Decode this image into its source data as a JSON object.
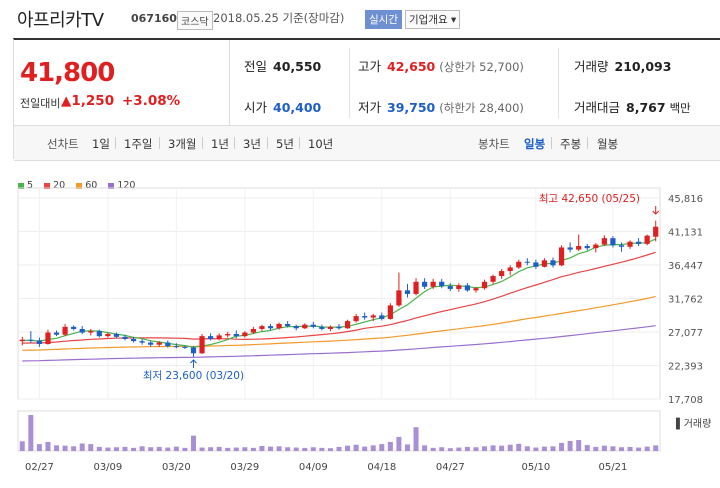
{
  "stock": {
    "name": "아프리카TV",
    "code": "067160",
    "market": "코스닥",
    "asof": "2018.05.25 기준(장마감)",
    "realtime_label": "실시간",
    "company_info_label": "기업개요 ▾"
  },
  "price": {
    "current": "41,800",
    "change_label": "전일대비",
    "change": "▲1,250",
    "change_pct": "+3.08%"
  },
  "stats": {
    "prev_close_label": "전일",
    "prev_close": "40,550",
    "high_label": "고가",
    "high": "42,650",
    "high_limit": "(상한가 52,700)",
    "volume_label": "거래량",
    "volume": "210,093",
    "open_label": "시가",
    "open": "40,400",
    "low_label": "저가",
    "low": "39,750",
    "low_limit": "(하한가 28,400)",
    "amount_label": "거래대금",
    "amount": "8,767",
    "amount_unit": "백만"
  },
  "periods": {
    "line_chart_label": "선차트",
    "line_options": [
      "1일",
      "1주일",
      "3개월",
      "1년",
      "3년",
      "5년",
      "10년"
    ],
    "candle_chart_label": "봉차트",
    "candle_options": [
      "일봉",
      "주봉",
      "월봉"
    ],
    "active": "일봉"
  },
  "colors": {
    "up": "#e02020",
    "down": "#1d5ec7",
    "ma5": "#49b449",
    "ma20": "#e84545",
    "ma60": "#f39a2b",
    "ma120": "#9a6fce",
    "volume": "#a98fd6"
  },
  "chart_data": {
    "type": "candlestick",
    "legend": [
      "5",
      "20",
      "60",
      "120"
    ],
    "y_ticks": [
      "45,816",
      "41,131",
      "36,447",
      "31,762",
      "27,077",
      "22,393",
      "17,708"
    ],
    "ylim": [
      17708,
      45816
    ],
    "x_ticks": [
      "02/27",
      "03/09",
      "03/20",
      "03/29",
      "04/09",
      "04/18",
      "04/27",
      "05/10",
      "05/21"
    ],
    "annotation_high": "최고 42,650 (05/25)",
    "annotation_low": "최저 23,600 (03/20)",
    "volume_label": "거래량",
    "candles": [
      [
        25800,
        26400,
        25200,
        26000
      ],
      [
        26000,
        27200,
        25600,
        25900
      ],
      [
        25900,
        26300,
        25000,
        25400
      ],
      [
        25400,
        27400,
        25300,
        27000
      ],
      [
        27000,
        27300,
        26500,
        26700
      ],
      [
        26700,
        28200,
        26500,
        27800
      ],
      [
        27800,
        28000,
        27300,
        27500
      ],
      [
        27500,
        27900,
        26800,
        27000
      ],
      [
        27000,
        27500,
        26600,
        27200
      ],
      [
        27200,
        27400,
        26300,
        26500
      ],
      [
        26500,
        27000,
        26300,
        26800
      ],
      [
        26800,
        27000,
        26200,
        26400
      ],
      [
        26400,
        26700,
        25900,
        26100
      ],
      [
        26100,
        26400,
        25600,
        25800
      ],
      [
        25800,
        26100,
        25300,
        25600
      ],
      [
        25600,
        25900,
        25000,
        25300
      ],
      [
        25300,
        25800,
        25000,
        25600
      ],
      [
        25600,
        25900,
        24900,
        25100
      ],
      [
        25100,
        25500,
        24800,
        25000
      ],
      [
        25000,
        25200,
        24700,
        24900
      ],
      [
        24900,
        25100,
        23600,
        24100
      ],
      [
        24100,
        26800,
        24000,
        26500
      ],
      [
        26500,
        26900,
        25900,
        26100
      ],
      [
        26100,
        26900,
        25900,
        26600
      ],
      [
        26600,
        27100,
        26300,
        26800
      ],
      [
        26800,
        27300,
        26200,
        26500
      ],
      [
        26500,
        27200,
        26300,
        27000
      ],
      [
        27000,
        27800,
        26800,
        27500
      ],
      [
        27500,
        28100,
        27200,
        27900
      ],
      [
        27900,
        28200,
        27300,
        27600
      ],
      [
        27600,
        28400,
        27400,
        28200
      ],
      [
        28200,
        28600,
        27700,
        27900
      ],
      [
        27900,
        28100,
        27300,
        27600
      ],
      [
        27600,
        28300,
        27500,
        28100
      ],
      [
        28100,
        28500,
        27600,
        27800
      ],
      [
        27800,
        28100,
        27300,
        27500
      ],
      [
        27500,
        28000,
        27200,
        27800
      ],
      [
        27800,
        28200,
        27400,
        27600
      ],
      [
        27600,
        28800,
        27500,
        28600
      ],
      [
        28600,
        29600,
        28400,
        29300
      ],
      [
        29300,
        29800,
        28800,
        29100
      ],
      [
        29100,
        29600,
        28600,
        29400
      ],
      [
        29400,
        29800,
        28700,
        28900
      ],
      [
        28900,
        31100,
        28800,
        30800
      ],
      [
        30800,
        35400,
        30600,
        32900
      ],
      [
        32900,
        33800,
        31900,
        32400
      ],
      [
        32400,
        34600,
        32200,
        34100
      ],
      [
        34100,
        34600,
        33100,
        33400
      ],
      [
        33400,
        34500,
        33100,
        34100
      ],
      [
        34100,
        34500,
        33200,
        33500
      ],
      [
        33500,
        33900,
        32800,
        33100
      ],
      [
        33100,
        33900,
        32700,
        33600
      ],
      [
        33600,
        33900,
        32700,
        32900
      ],
      [
        32900,
        33400,
        32600,
        33200
      ],
      [
        33200,
        34400,
        33000,
        34100
      ],
      [
        34100,
        35100,
        33800,
        34900
      ],
      [
        34900,
        35900,
        34500,
        35600
      ],
      [
        35600,
        36400,
        35000,
        36100
      ],
      [
        36100,
        37200,
        35900,
        36900
      ],
      [
        36900,
        37400,
        36400,
        36800
      ],
      [
        36800,
        37200,
        35900,
        36200
      ],
      [
        36200,
        37400,
        36100,
        37100
      ],
      [
        37100,
        37500,
        36100,
        36400
      ],
      [
        36400,
        39200,
        36300,
        38900
      ],
      [
        38900,
        39600,
        38200,
        38600
      ],
      [
        38600,
        40700,
        38400,
        39100
      ],
      [
        39100,
        39400,
        38500,
        38800
      ],
      [
        38800,
        39500,
        38200,
        39300
      ],
      [
        39300,
        40600,
        39100,
        40200
      ],
      [
        40200,
        40500,
        38900,
        39200
      ],
      [
        39200,
        39600,
        38300,
        39000
      ],
      [
        39000,
        39900,
        38700,
        39700
      ],
      [
        39700,
        40200,
        39100,
        39400
      ],
      [
        39400,
        40700,
        39200,
        40550
      ],
      [
        40400,
        42650,
        39750,
        41800
      ]
    ],
    "volumes": [
      62,
      230,
      44,
      58,
      36,
      34,
      30,
      48,
      44,
      26,
      22,
      24,
      26,
      20,
      30,
      24,
      26,
      22,
      28,
      20,
      98,
      22,
      24,
      26,
      20,
      22,
      24,
      20,
      32,
      28,
      30,
      24,
      22,
      20,
      24,
      20,
      18,
      26,
      34,
      40,
      28,
      36,
      44,
      58,
      90,
      42,
      152,
      36,
      20,
      24,
      18,
      22,
      26,
      24,
      30,
      36,
      34,
      40,
      46,
      30,
      22,
      28,
      30,
      52,
      64,
      70,
      38,
      26,
      34,
      30,
      24,
      26,
      22,
      28,
      36
    ]
  }
}
